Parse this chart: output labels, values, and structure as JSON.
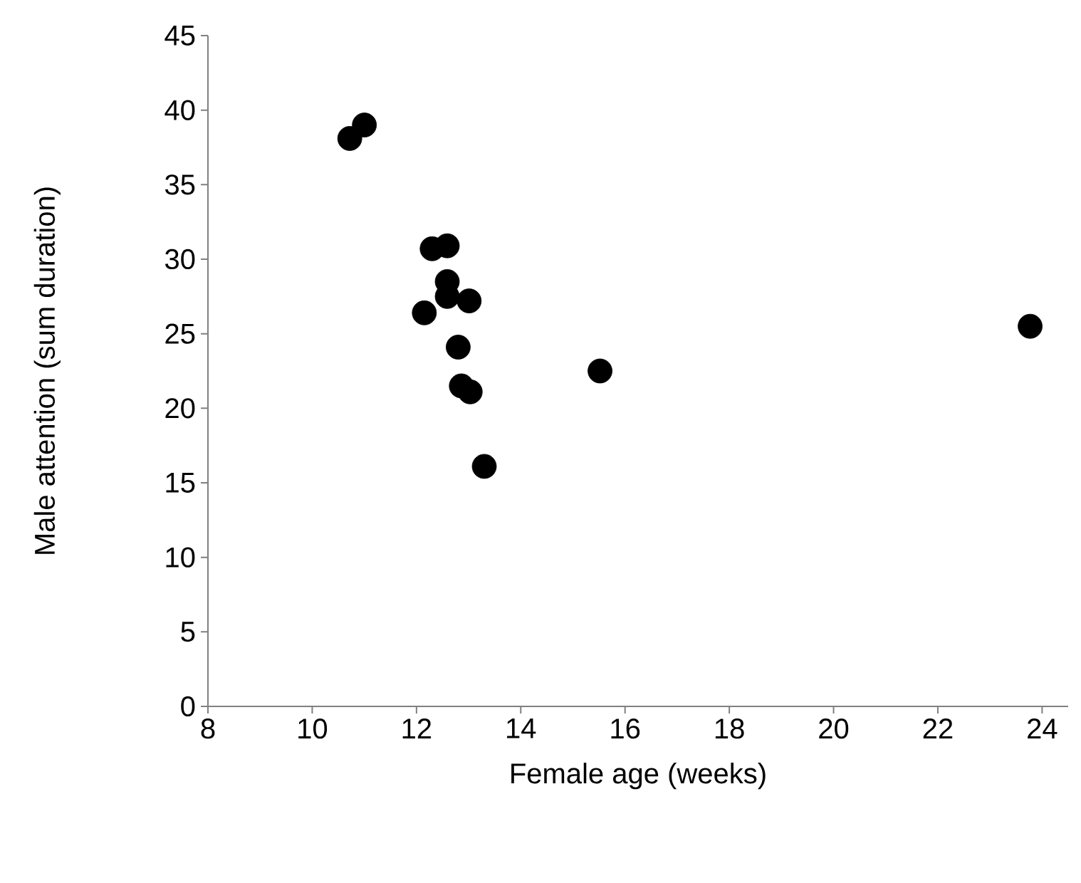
{
  "chart_data": {
    "type": "scatter",
    "xlabel": "Female age (weeks)",
    "ylabel": "Male attention (sum duration)",
    "x": [
      10.72,
      11.0,
      12.3,
      12.59,
      12.59,
      12.59,
      13.01,
      12.15,
      12.8,
      12.86,
      13.03,
      13.3,
      15.52,
      23.77
    ],
    "values": [
      38.1,
      39.0,
      30.7,
      30.9,
      28.5,
      27.5,
      27.2,
      26.4,
      24.1,
      21.5,
      21.1,
      16.1,
      22.5,
      25.5
    ],
    "color": "#000000",
    "marker": "circle",
    "xlim": [
      8,
      24.5
    ],
    "xticks": [
      8,
      10,
      12,
      14,
      16,
      18,
      20,
      22,
      24
    ],
    "ylim": [
      0,
      45
    ],
    "yticks": [
      0,
      5,
      10,
      15,
      20,
      25,
      30,
      35,
      40,
      45
    ]
  }
}
